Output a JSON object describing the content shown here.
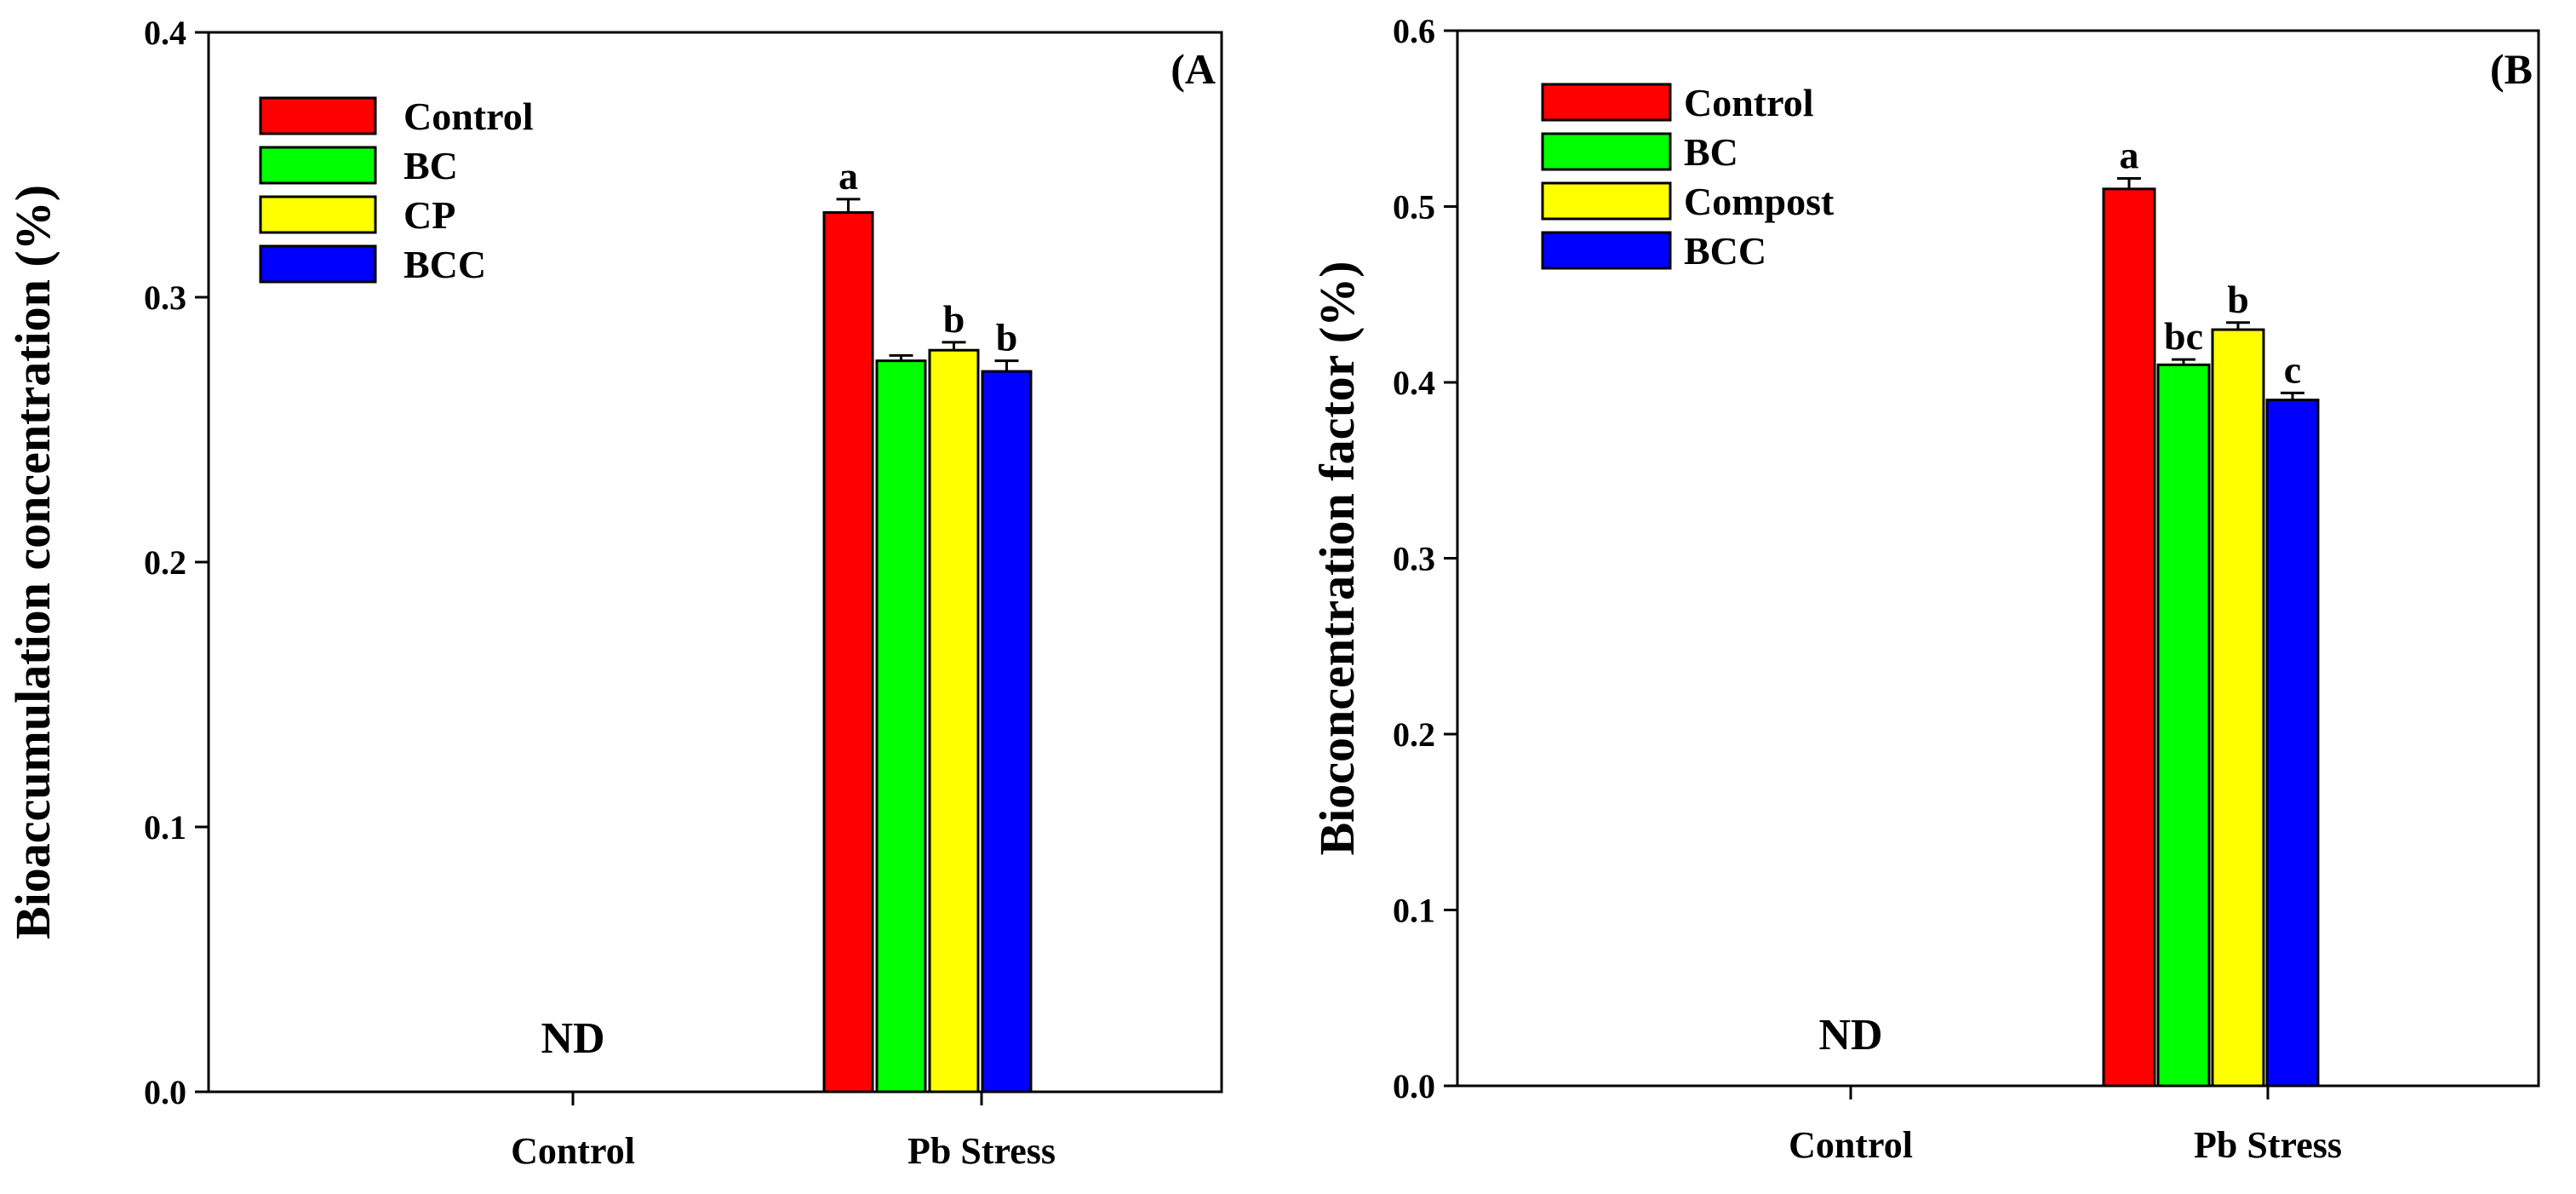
{
  "chart_data": [
    {
      "type": "bar",
      "panel_label": "(A",
      "ylabel": "Bioaccumulation concentration (%)",
      "xlabel": "",
      "ylim": [
        0,
        0.4
      ],
      "yticks": [
        "0.0",
        "0.1",
        "0.2",
        "0.3",
        "0.4"
      ],
      "ytick_values": [
        0,
        0.1,
        0.2,
        0.3,
        0.4
      ],
      "categories": [
        "Control",
        "Pb Stress"
      ],
      "legend_position": "top-left",
      "series": [
        {
          "name": "Control",
          "color": "#ff0000",
          "values": [
            null,
            0.332
          ],
          "errors": [
            null,
            0.005
          ],
          "letters": [
            "",
            "a"
          ]
        },
        {
          "name": "BC",
          "color": "#00ff00",
          "values": [
            null,
            0.276
          ],
          "errors": [
            null,
            0.002
          ],
          "letters": [
            "",
            ""
          ]
        },
        {
          "name": "CP",
          "color": "#ffff00",
          "values": [
            null,
            0.28
          ],
          "errors": [
            null,
            0.003
          ],
          "letters": [
            "",
            "b"
          ]
        },
        {
          "name": "BCC",
          "color": "#0000ff",
          "values": [
            null,
            0.272
          ],
          "errors": [
            null,
            0.004
          ],
          "letters": [
            "",
            "b"
          ]
        }
      ],
      "annotations": [
        "ND"
      ]
    },
    {
      "type": "bar",
      "panel_label": "(B",
      "ylabel": "Bioconcentration factor (%)",
      "xlabel": "",
      "ylim": [
        0,
        0.6
      ],
      "yticks": [
        "0.0",
        "0.1",
        "0.2",
        "0.3",
        "0.4",
        "0.5",
        "0.6"
      ],
      "ytick_values": [
        0,
        0.1,
        0.2,
        0.3,
        0.4,
        0.5,
        0.6
      ],
      "categories": [
        "Control",
        "Pb Stress"
      ],
      "legend_position": "top-left",
      "series": [
        {
          "name": "Control",
          "color": "#ff0000",
          "values": [
            null,
            0.51
          ],
          "errors": [
            null,
            0.006
          ],
          "letters": [
            "",
            "a"
          ]
        },
        {
          "name": "BC",
          "color": "#00ff00",
          "values": [
            null,
            0.41
          ],
          "errors": [
            null,
            0.003
          ],
          "letters": [
            "",
            "bc"
          ]
        },
        {
          "name": "Compost",
          "color": "#ffff00",
          "values": [
            null,
            0.43
          ],
          "errors": [
            null,
            0.004
          ],
          "letters": [
            "",
            "b"
          ]
        },
        {
          "name": "BCC",
          "color": "#0000ff",
          "values": [
            null,
            0.39
          ],
          "errors": [
            null,
            0.004
          ],
          "letters": [
            "",
            "c"
          ]
        }
      ],
      "annotations": [
        "ND"
      ]
    }
  ]
}
